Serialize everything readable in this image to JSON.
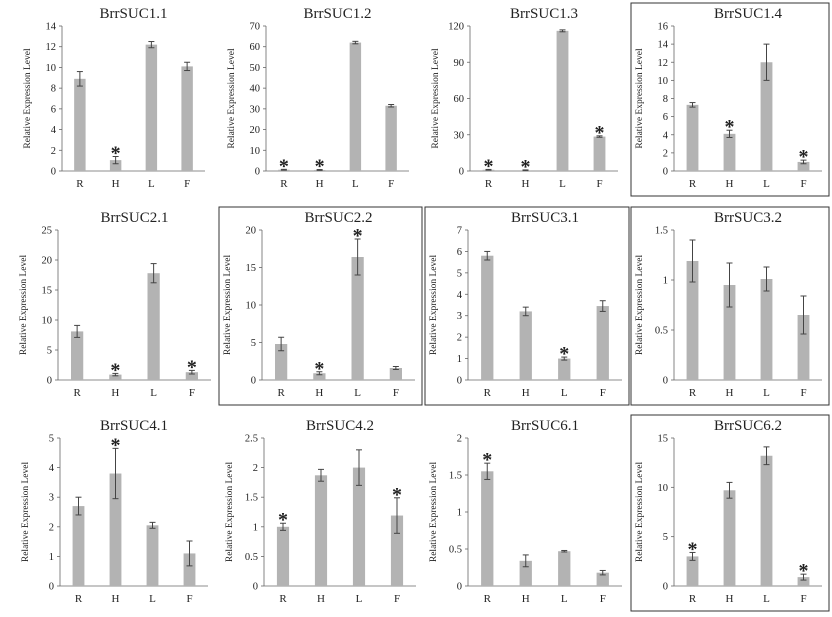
{
  "figure": {
    "ylabel": "Relative Expression Level",
    "bar_color": "#b3b3b3",
    "error_color": "#444444",
    "frame_color": "#333333"
  },
  "chart_data": [
    {
      "type": "bar",
      "title": "BrrSUC1.1",
      "categories": [
        "R",
        "H",
        "L",
        "F"
      ],
      "values": [
        8.9,
        1.05,
        12.2,
        10.1
      ],
      "errors": [
        0.7,
        0.35,
        0.3,
        0.4
      ],
      "significant": [
        false,
        true,
        false,
        false
      ],
      "ylim": [
        0,
        14
      ],
      "yticks": [
        0,
        2,
        4,
        6,
        8,
        10,
        12,
        14
      ],
      "ylabel": "Relative Expression Level"
    },
    {
      "type": "bar",
      "title": "BrrSUC1.2",
      "categories": [
        "R",
        "H",
        "L",
        "F"
      ],
      "values": [
        0.6,
        0.5,
        62,
        31.5
      ],
      "errors": [
        0.2,
        0.2,
        0.6,
        0.6
      ],
      "significant": [
        true,
        true,
        false,
        false
      ],
      "ylim": [
        0,
        70
      ],
      "yticks": [
        0,
        10,
        20,
        30,
        40,
        50,
        60,
        70
      ],
      "ylabel": "Relative Expression Level"
    },
    {
      "type": "bar",
      "title": "BrrSUC1.3",
      "categories": [
        "R",
        "H",
        "L",
        "F"
      ],
      "values": [
        1.0,
        0.6,
        116,
        28.5
      ],
      "errors": [
        0.3,
        0.3,
        0.8,
        0.6
      ],
      "significant": [
        true,
        true,
        false,
        true
      ],
      "ylim": [
        0,
        120
      ],
      "yticks": [
        0,
        30,
        60,
        90,
        120
      ],
      "ylabel": "Relative Expression Level"
    },
    {
      "type": "bar",
      "title": "BrrSUC1.4",
      "categories": [
        "R",
        "H",
        "L",
        "F"
      ],
      "values": [
        7.3,
        4.1,
        12.0,
        1.0
      ],
      "errors": [
        0.25,
        0.4,
        2.0,
        0.2
      ],
      "significant": [
        false,
        true,
        false,
        true
      ],
      "ylim": [
        0,
        16
      ],
      "yticks": [
        0,
        2,
        4,
        6,
        8,
        10,
        12,
        14,
        16
      ],
      "ylabel": "Relative Expression Level"
    },
    {
      "type": "bar",
      "title": "BrrSUC2.1",
      "categories": [
        "R",
        "H",
        "L",
        "F"
      ],
      "values": [
        8.1,
        0.9,
        17.8,
        1.3
      ],
      "errors": [
        1.0,
        0.2,
        1.6,
        0.3
      ],
      "significant": [
        false,
        true,
        false,
        true
      ],
      "ylim": [
        0,
        25
      ],
      "yticks": [
        0,
        5,
        10,
        15,
        20,
        25
      ],
      "ylabel": "Relative Expression Level"
    },
    {
      "type": "bar",
      "title": "BrrSUC2.2",
      "categories": [
        "R",
        "H",
        "L",
        "F"
      ],
      "values": [
        4.8,
        0.9,
        16.4,
        1.6
      ],
      "errors": [
        0.9,
        0.2,
        2.4,
        0.2
      ],
      "significant": [
        false,
        true,
        true,
        false
      ],
      "ylim": [
        0,
        20
      ],
      "yticks": [
        0,
        5,
        10,
        15,
        20
      ],
      "ylabel": "Relative Expression Level"
    },
    {
      "type": "bar",
      "title": "BrrSUC3.1",
      "categories": [
        "R",
        "H",
        "L",
        "F"
      ],
      "values": [
        5.8,
        3.2,
        1.0,
        3.45
      ],
      "errors": [
        0.2,
        0.2,
        0.07,
        0.25
      ],
      "significant": [
        false,
        false,
        true,
        false
      ],
      "ylim": [
        0,
        7
      ],
      "yticks": [
        0,
        1,
        2,
        3,
        4,
        5,
        6,
        7
      ],
      "ylabel": "Relative Expression Level"
    },
    {
      "type": "bar",
      "title": "BrrSUC3.2",
      "categories": [
        "R",
        "H",
        "L",
        "F"
      ],
      "values": [
        1.19,
        0.95,
        1.01,
        0.65
      ],
      "errors": [
        0.21,
        0.22,
        0.12,
        0.19
      ],
      "significant": [
        false,
        false,
        false,
        false
      ],
      "ylim": [
        0,
        1.5
      ],
      "yticks": [
        0,
        0.5,
        1,
        1.5
      ],
      "ylabel": "Relative Expression Level"
    },
    {
      "type": "bar",
      "title": "BrrSUC4.1",
      "categories": [
        "R",
        "H",
        "L",
        "F"
      ],
      "values": [
        2.7,
        3.8,
        2.05,
        1.1
      ],
      "errors": [
        0.3,
        0.85,
        0.1,
        0.42
      ],
      "significant": [
        false,
        true,
        false,
        false
      ],
      "ylim": [
        0,
        5
      ],
      "yticks": [
        0,
        1,
        2,
        3,
        4,
        5
      ],
      "ylabel": "Relative Expression Level"
    },
    {
      "type": "bar",
      "title": "BrrSUC4.2",
      "categories": [
        "R",
        "H",
        "L",
        "F"
      ],
      "values": [
        1.0,
        1.87,
        2.0,
        1.19
      ],
      "errors": [
        0.06,
        0.1,
        0.3,
        0.3
      ],
      "significant": [
        true,
        false,
        false,
        true
      ],
      "ylim": [
        0,
        2.5
      ],
      "yticks": [
        0,
        0.5,
        1,
        1.5,
        2,
        2.5
      ],
      "ylabel": "Relative Expression Level"
    },
    {
      "type": "bar",
      "title": "BrrSUC6.1",
      "categories": [
        "R",
        "H",
        "L",
        "F"
      ],
      "values": [
        1.55,
        0.34,
        0.47,
        0.18
      ],
      "errors": [
        0.11,
        0.08,
        0.01,
        0.03
      ],
      "significant": [
        true,
        false,
        false,
        false
      ],
      "ylim": [
        0,
        2
      ],
      "yticks": [
        0,
        0.5,
        1,
        1.5,
        2
      ],
      "ylabel": "Relative Expression Level"
    },
    {
      "type": "bar",
      "title": "BrrSUC6.2",
      "categories": [
        "R",
        "H",
        "L",
        "F"
      ],
      "values": [
        3.0,
        9.7,
        13.2,
        0.9
      ],
      "errors": [
        0.4,
        0.8,
        0.9,
        0.3
      ],
      "significant": [
        true,
        false,
        false,
        true
      ],
      "ylim": [
        0,
        15
      ],
      "yticks": [
        0,
        5,
        10,
        15
      ],
      "ylabel": "Relative Expression Level"
    }
  ]
}
